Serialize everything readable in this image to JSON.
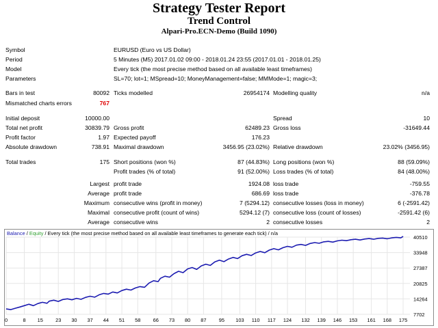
{
  "header": {
    "title": "Strategy Tester Report",
    "subtitle": "Trend Control",
    "server": "Alpari-Pro.ECN-Demo (Build 1090)"
  },
  "info": {
    "symbol_label": "Symbol",
    "symbol": "EURUSD (Euro vs US Dollar)",
    "period_label": "Period",
    "period": "5 Minutes (M5) 2017.01.02 09:00 - 2018.01.24 23:55 (2017.01.01 - 2018.01.25)",
    "model_label": "Model",
    "model": "Every tick (the most precise method based on all available least timeframes)",
    "params_label": "Parameters",
    "params": "SL=70; lot=1; MSpread=10; MoneyManagement=false; MMMode=1; magic=3;"
  },
  "bars": {
    "bars_label": "Bars in test",
    "bars": "80092",
    "ticks_label": "Ticks modelled",
    "ticks": "26954174",
    "quality_label": "Modelling quality",
    "quality": "n/a",
    "mismatch_label": "Mismatched charts errors",
    "mismatch": "767"
  },
  "stats": {
    "initial_deposit_label": "Initial deposit",
    "initial_deposit": "10000.00",
    "spread_label": "Spread",
    "spread": "10",
    "net_profit_label": "Total net profit",
    "net_profit": "30839.79",
    "gross_profit_label": "Gross profit",
    "gross_profit": "62489.23",
    "gross_loss_label": "Gross loss",
    "gross_loss": "-31649.44",
    "profit_factor_label": "Profit factor",
    "profit_factor": "1.97",
    "expected_payoff_label": "Expected payoff",
    "expected_payoff": "176.23",
    "abs_dd_label": "Absolute drawdown",
    "abs_dd": "738.91",
    "max_dd_label": "Maximal drawdown",
    "max_dd": "3456.95 (23.02%)",
    "rel_dd_label": "Relative drawdown",
    "rel_dd": "23.02% (3456.95)"
  },
  "trades": {
    "total_label": "Total trades",
    "total": "175",
    "short_label": "Short positions (won %)",
    "short": "87 (44.83%)",
    "long_label": "Long positions (won %)",
    "long": "88 (59.09%)",
    "profit_trades_label": "Profit trades (% of total)",
    "profit_trades": "91 (52.00%)",
    "loss_trades_label": "Loss trades (% of total)",
    "loss_trades": "84 (48.00%)",
    "largest_label": "Largest",
    "largest_profit_label": "profit trade",
    "largest_profit": "1924.08",
    "largest_loss_label": "loss trade",
    "largest_loss": "-759.55",
    "average_label": "Average",
    "average_profit_label": "profit trade",
    "average_profit": "686.69",
    "average_loss_label": "loss trade",
    "average_loss": "-376.78",
    "maximum_label": "Maximum",
    "max_cons_wins_label": "consecutive wins (profit in money)",
    "max_cons_wins": "7 (5294.12)",
    "max_cons_losses_label": "consecutive losses (loss in money)",
    "max_cons_losses": "6 (-2591.42)",
    "maximal_label": "Maximal",
    "maximal_cons_profit_label": "consecutive profit (count of wins)",
    "maximal_cons_profit": "5294.12 (7)",
    "maximal_cons_loss_label": "consecutive loss (count of losses)",
    "maximal_cons_loss": "-2591.42 (6)",
    "avg_label": "Average",
    "avg_cons_wins_label": "consecutive wins",
    "avg_cons_wins": "2",
    "avg_cons_losses_label": "consecutive losses",
    "avg_cons_losses": "2"
  },
  "chart_data": {
    "type": "line",
    "legend": {
      "balance": "Balance",
      "sep1": " / ",
      "equity": "Equity",
      "rest": " / Every tick (the most precise method based on all available least timeframes to generate each tick) / n/a"
    },
    "x_ticks": [
      "0",
      "8",
      "15",
      "23",
      "30",
      "37",
      "44",
      "51",
      "58",
      "66",
      "73",
      "80",
      "87",
      "95",
      "103",
      "110",
      "117",
      "124",
      "132",
      "139",
      "146",
      "153",
      "161",
      "168",
      "175"
    ],
    "y_ticks": [
      "40510",
      "33948",
      "27387",
      "20825",
      "14264",
      "7702"
    ],
    "xlim": [
      0,
      178
    ],
    "ylim": [
      7702,
      40510
    ],
    "colors": {
      "balance": "#1a1ab0",
      "equity": "#2e9e2e",
      "grid": "#e6e6e6"
    },
    "series": [
      {
        "name": "Balance",
        "x": [
          0,
          2,
          4,
          6,
          8,
          10,
          12,
          14,
          16,
          18,
          19,
          21,
          23,
          25,
          27,
          29,
          31,
          33,
          35,
          37,
          39,
          41,
          43,
          45,
          47,
          49,
          51,
          53,
          55,
          57,
          59,
          61,
          63,
          65,
          67,
          68,
          70,
          72,
          74,
          76,
          78,
          80,
          82,
          84,
          86,
          88,
          90,
          92,
          94,
          96,
          98,
          100,
          102,
          104,
          106,
          108,
          110,
          112,
          114,
          116,
          118,
          120,
          122,
          124,
          126,
          128,
          130,
          132,
          134,
          136,
          138,
          140,
          142,
          144,
          146,
          148,
          150,
          152,
          154,
          156,
          158,
          160,
          162,
          164,
          166,
          168,
          170,
          172,
          174,
          175
        ],
        "values": [
          10000,
          9700,
          10300,
          10800,
          11400,
          12000,
          11400,
          12300,
          12800,
          12400,
          13300,
          13700,
          13200,
          14000,
          14300,
          13900,
          14500,
          14100,
          14900,
          15400,
          15000,
          16000,
          16600,
          16300,
          17200,
          16800,
          17800,
          18400,
          18000,
          18900,
          19500,
          19200,
          21000,
          22000,
          21600,
          23000,
          23900,
          23500,
          25000,
          26000,
          25400,
          27000,
          27600,
          26800,
          28300,
          29000,
          28500,
          30000,
          30700,
          30100,
          31200,
          31900,
          31400,
          32600,
          33200,
          32700,
          33800,
          34400,
          33900,
          35000,
          35600,
          35100,
          36000,
          36600,
          36200,
          37100,
          37400,
          37000,
          37800,
          38200,
          37900,
          38500,
          38700,
          38400,
          38900,
          39200,
          39000,
          39400,
          39600,
          39300,
          39700,
          39900,
          39600,
          40000,
          40100,
          39800,
          40200,
          40400,
          40200,
          40840
        ]
      }
    ]
  }
}
